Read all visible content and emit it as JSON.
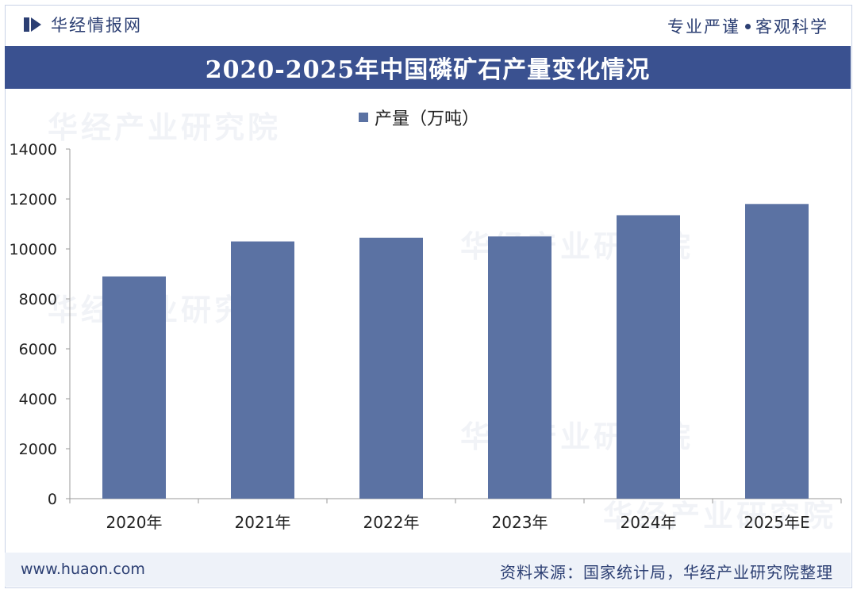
{
  "header": {
    "brand_name": "华经情报网",
    "slogan_left": "专业严谨",
    "slogan_right": "客观科学"
  },
  "chart_data": {
    "type": "bar",
    "title": "2020-2025年中国磷矿石产量变化情况",
    "categories": [
      "2020年",
      "2021年",
      "2022年",
      "2023年",
      "2024年",
      "2025年E"
    ],
    "series": [
      {
        "name": "产量（万吨）",
        "values": [
          8900,
          10300,
          10450,
          10500,
          11350,
          11800
        ]
      }
    ],
    "ylim": [
      0,
      14000
    ],
    "yticks": [
      0,
      2000,
      4000,
      6000,
      8000,
      10000,
      12000,
      14000
    ],
    "legend_position": "top-center",
    "grid": false,
    "bar_color": "#5b72a3"
  },
  "footer": {
    "url": "www.huaon.com",
    "source": "资料来源：国家统计局，华经产业研究院整理"
  },
  "watermark": {
    "text": "华经产业研究院"
  }
}
